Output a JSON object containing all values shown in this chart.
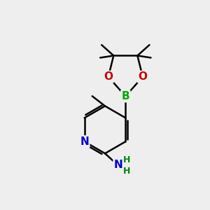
{
  "background_color": "#eeeeee",
  "bond_color": "#000000",
  "atom_colors": {
    "N": "#0000cc",
    "O": "#cc0000",
    "B": "#00aa00",
    "C": "#000000",
    "H": "#008800"
  },
  "figsize": [
    3.0,
    3.0
  ],
  "dpi": 100
}
